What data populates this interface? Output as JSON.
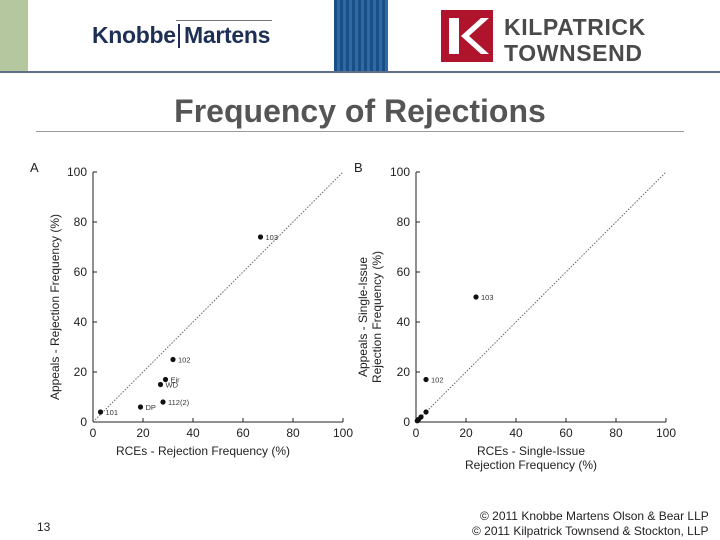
{
  "header": {
    "logo_left_word1": "Knobbe",
    "logo_left_word2": "Martens",
    "logo_right_line1": "KILPATRICK",
    "logo_right_line2": "TOWNSEND",
    "brand_color": "#b0142c"
  },
  "title": "Frequency of Rejections",
  "chart_data": [
    {
      "type": "scatter",
      "panel": "A",
      "xlabel": "RCEs - Rejection Frequency (%)",
      "ylabel": "Appeals - Rejection Frequency (%)",
      "xlim": [
        0,
        100
      ],
      "ylim": [
        0,
        100
      ],
      "xticks": [
        0,
        20,
        40,
        60,
        80,
        100
      ],
      "yticks": [
        0,
        20,
        40,
        60,
        80,
        100
      ],
      "diagonal": true,
      "points": [
        {
          "x": 67,
          "y": 74,
          "label": "103"
        },
        {
          "x": 32,
          "y": 25,
          "label": "102"
        },
        {
          "x": 29,
          "y": 17,
          "label": "Eir"
        },
        {
          "x": 27,
          "y": 15,
          "label": "WD"
        },
        {
          "x": 28,
          "y": 8,
          "label": "112(2)"
        },
        {
          "x": 19,
          "y": 6,
          "label": "DP"
        },
        {
          "x": 3,
          "y": 4,
          "label": "101"
        }
      ]
    },
    {
      "type": "scatter",
      "panel": "B",
      "xlabel": "RCEs - Single-Issue Rejection Frequency (%)",
      "ylabel": "Appeals - Single-Issue Rejection Frequency (%)",
      "xlim": [
        0,
        100
      ],
      "ylim": [
        0,
        100
      ],
      "xticks": [
        0,
        20,
        40,
        60,
        80,
        100
      ],
      "yticks": [
        0,
        20,
        40,
        60,
        80,
        100
      ],
      "diagonal": true,
      "points": [
        {
          "x": 24,
          "y": 50,
          "label": "103"
        },
        {
          "x": 4,
          "y": 17,
          "label": "102"
        },
        {
          "x": 4,
          "y": 4,
          "label": ""
        },
        {
          "x": 2,
          "y": 2,
          "label": ""
        },
        {
          "x": 1,
          "y": 1,
          "label": ""
        },
        {
          "x": 0.5,
          "y": 0.5,
          "label": ""
        }
      ]
    }
  ],
  "footer": {
    "slide_number": "13",
    "copyright_1": "© 2011 Knobbe Martens Olson & Bear LLP",
    "copyright_2": "© 2011 Kilpatrick Townsend & Stockton, LLP"
  }
}
